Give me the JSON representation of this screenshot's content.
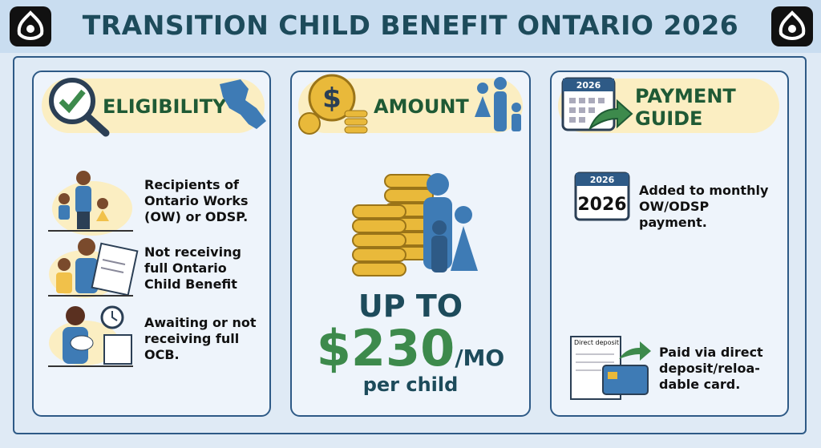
{
  "header": {
    "title": "TRANSITION CHILD BENEFIT ONTARIO 2026"
  },
  "eligibility": {
    "title": "ELIGIBILITY",
    "items": [
      "Recipients of Ontario Works (OW) or ODSP.",
      "Not receiving full Ontario Child Benefit",
      "Awaiting or not receiving full OCB."
    ]
  },
  "amount": {
    "title": "AMOUNT",
    "prefix": "UP TO",
    "value": "$230",
    "unit": "/MO",
    "note": "per child"
  },
  "payment": {
    "title": "PAYMENT GUIDE",
    "icon_year": "2026",
    "items": [
      {
        "icon_year_small": "2026",
        "icon_year": "2026",
        "text": "Added to monthly OW/ODSP payment."
      },
      {
        "icon_label": "Direct deposit",
        "text": "Paid via direct deposit/reloa-dable card."
      }
    ]
  }
}
